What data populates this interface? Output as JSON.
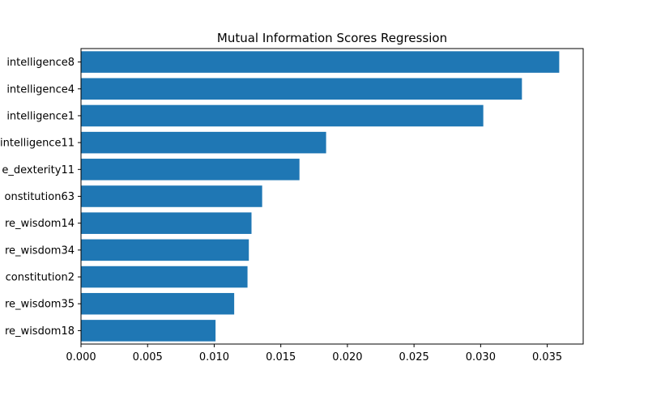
{
  "chart_data": {
    "type": "bar",
    "orientation": "horizontal",
    "title": "Mutual Information Scores Regression",
    "xlabel": "",
    "ylabel": "",
    "categories": [
      "intelligence8",
      "intelligence4",
      "intelligence1",
      "intelligence11",
      "e_dexterity11",
      "onstitution63",
      "re_wisdom14",
      "re_wisdom34",
      "constitution2",
      "re_wisdom35",
      "re_wisdom18"
    ],
    "values": [
      0.0359,
      0.0331,
      0.0302,
      0.0184,
      0.0164,
      0.0136,
      0.0128,
      0.0126,
      0.0125,
      0.0115,
      0.0101
    ],
    "xlim": [
      0.0,
      0.0377
    ],
    "xticks": [
      0.0,
      0.005,
      0.01,
      0.015,
      0.02,
      0.025,
      0.03,
      0.035
    ],
    "xtick_labels": [
      "0.000",
      "0.005",
      "0.010",
      "0.015",
      "0.020",
      "0.025",
      "0.030",
      "0.035"
    ],
    "bar_color": "#1f77b4",
    "grid": false,
    "legend": "none"
  }
}
